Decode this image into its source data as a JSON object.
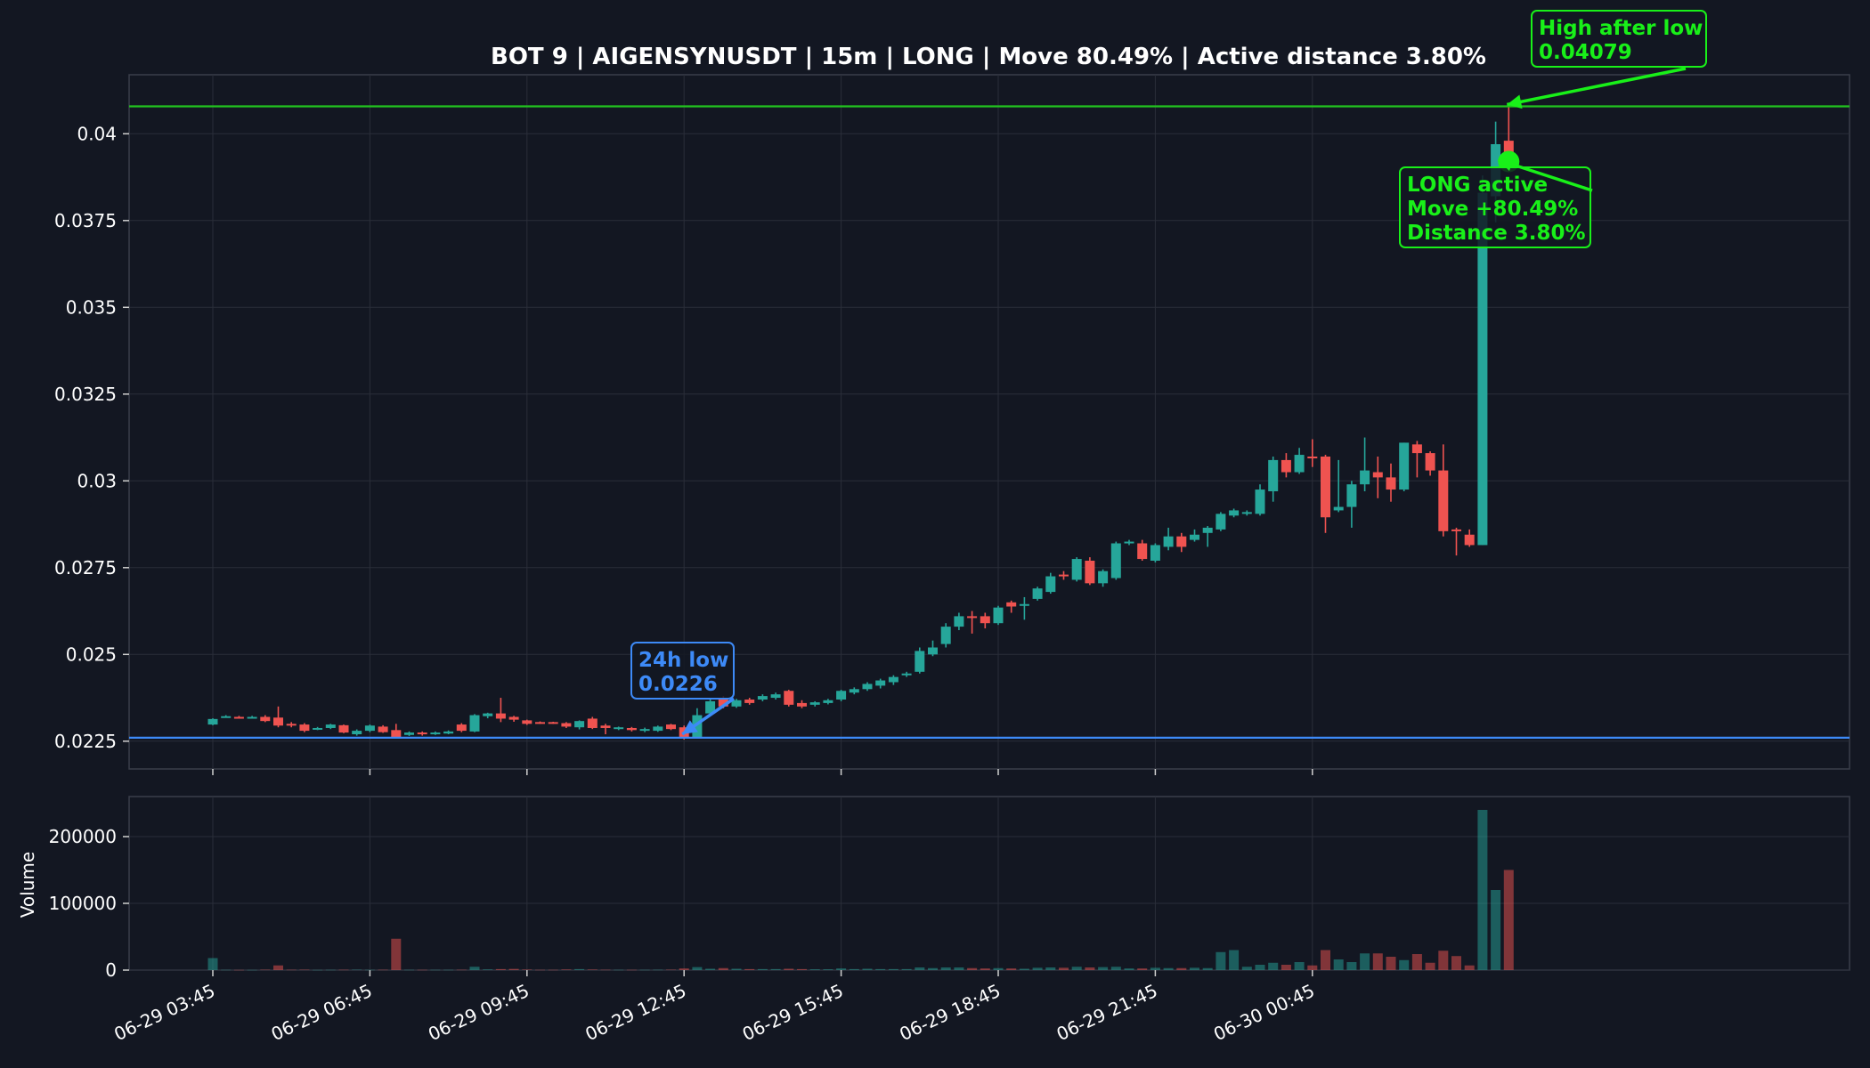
{
  "chart_data": {
    "type": "candlestick",
    "title": "BOT 9 | AIGENSYNUSDT | 15m | LONG | Move 80.49% | Active distance 3.80%",
    "interval": "15m",
    "start_time": "06-29 03:45",
    "ylim": [
      0.0217,
      0.0417
    ],
    "y_ticks": [
      "0.0225",
      "0.025",
      "0.0275",
      "0.03",
      "0.0325",
      "0.035",
      "0.0375",
      "0.04"
    ],
    "volume_ylabel": "Volume",
    "volume_ylim": [
      0,
      260000
    ],
    "volume_ticks": [
      "0",
      "100000",
      "200000"
    ],
    "x_ticks": [
      "06-29 03:45",
      "06-29 06:45",
      "06-29 09:45",
      "06-29 12:45",
      "06-29 15:45",
      "06-29 18:45",
      "06-29 21:45",
      "06-30 00:45"
    ],
    "colors": {
      "background": "#131722",
      "up": "#26a69a",
      "down": "#ef5350",
      "high_line": "#22c21f",
      "low_line": "#3d8af7",
      "marker": "#19f019",
      "grid": "#2a2e39",
      "label_text": "#ffffff"
    },
    "candles": [
      [
        0.02298,
        0.02314,
        0.02296,
        0.02316,
        18000
      ],
      [
        0.0232,
        0.02322,
        0.02318,
        0.02325,
        400
      ],
      [
        0.0232,
        0.02318,
        0.02315,
        0.02323,
        300
      ],
      [
        0.02318,
        0.0232,
        0.02316,
        0.02323,
        300
      ],
      [
        0.0232,
        0.02308,
        0.02305,
        0.02325,
        600
      ],
      [
        0.02318,
        0.02295,
        0.0229,
        0.0235,
        7000
      ],
      [
        0.023,
        0.02295,
        0.0229,
        0.02305,
        500
      ],
      [
        0.02298,
        0.0228,
        0.02276,
        0.02302,
        600
      ],
      [
        0.02285,
        0.02288,
        0.02282,
        0.02291,
        300
      ],
      [
        0.02288,
        0.02298,
        0.02285,
        0.023,
        400
      ],
      [
        0.02296,
        0.02275,
        0.02273,
        0.02298,
        500
      ],
      [
        0.0227,
        0.0228,
        0.02266,
        0.02284,
        600
      ],
      [
        0.0228,
        0.02295,
        0.02276,
        0.02298,
        400
      ],
      [
        0.02292,
        0.02276,
        0.02274,
        0.02296,
        500
      ],
      [
        0.02282,
        0.02262,
        0.0226,
        0.023,
        47000
      ],
      [
        0.02268,
        0.02275,
        0.02265,
        0.02278,
        400
      ],
      [
        0.02275,
        0.0227,
        0.02266,
        0.02278,
        400
      ],
      [
        0.0227,
        0.02275,
        0.02268,
        0.02278,
        400
      ],
      [
        0.02272,
        0.02278,
        0.0227,
        0.02281,
        400
      ],
      [
        0.02298,
        0.0228,
        0.02276,
        0.02302,
        500
      ],
      [
        0.02278,
        0.02325,
        0.02276,
        0.02328,
        5000
      ],
      [
        0.02322,
        0.0233,
        0.02316,
        0.02332,
        1000
      ],
      [
        0.0233,
        0.02315,
        0.02305,
        0.02375,
        1500
      ],
      [
        0.0232,
        0.02312,
        0.02306,
        0.02323,
        1800
      ],
      [
        0.0231,
        0.023,
        0.02297,
        0.02312,
        800
      ],
      [
        0.02305,
        0.02302,
        0.023,
        0.02307,
        400
      ],
      [
        0.02305,
        0.02303,
        0.023,
        0.02306,
        400
      ],
      [
        0.02302,
        0.02292,
        0.02288,
        0.02305,
        900
      ],
      [
        0.0229,
        0.02308,
        0.02284,
        0.0231,
        1500
      ],
      [
        0.02315,
        0.02288,
        0.02285,
        0.0232,
        800
      ],
      [
        0.02295,
        0.02288,
        0.0227,
        0.023,
        500
      ],
      [
        0.02285,
        0.0229,
        0.02282,
        0.02292,
        400
      ],
      [
        0.02288,
        0.02282,
        0.02278,
        0.02291,
        400
      ],
      [
        0.0228,
        0.02285,
        0.02276,
        0.02289,
        400
      ],
      [
        0.0228,
        0.02292,
        0.02277,
        0.02295,
        500
      ],
      [
        0.02298,
        0.02285,
        0.02282,
        0.023,
        600
      ],
      [
        0.0229,
        0.0226,
        0.02255,
        0.02295,
        2500
      ],
      [
        0.02262,
        0.02325,
        0.02258,
        0.02345,
        4500
      ],
      [
        0.0233,
        0.02365,
        0.02325,
        0.0237,
        2000
      ],
      [
        0.02373,
        0.0235,
        0.02345,
        0.0238,
        3000
      ],
      [
        0.0235,
        0.02368,
        0.02346,
        0.02372,
        2000
      ],
      [
        0.0237,
        0.0236,
        0.02355,
        0.02375,
        1500
      ],
      [
        0.0237,
        0.0238,
        0.02365,
        0.02385,
        1500
      ],
      [
        0.02375,
        0.02385,
        0.0237,
        0.0239,
        1500
      ],
      [
        0.02395,
        0.02355,
        0.0235,
        0.02398,
        2000
      ],
      [
        0.0236,
        0.0235,
        0.02345,
        0.02368,
        1500
      ],
      [
        0.02355,
        0.02362,
        0.0235,
        0.02365,
        1200
      ],
      [
        0.0236,
        0.02368,
        0.02356,
        0.02372,
        1200
      ],
      [
        0.0237,
        0.02395,
        0.02365,
        0.02398,
        2500
      ],
      [
        0.0239,
        0.024,
        0.02385,
        0.02405,
        1500
      ],
      [
        0.024,
        0.02415,
        0.02395,
        0.0242,
        2000
      ],
      [
        0.0241,
        0.02425,
        0.02402,
        0.0243,
        1500
      ],
      [
        0.0242,
        0.02435,
        0.02412,
        0.0244,
        1500
      ],
      [
        0.0244,
        0.02445,
        0.02435,
        0.0245,
        1500
      ],
      [
        0.0245,
        0.0251,
        0.02445,
        0.0252,
        4000
      ],
      [
        0.025,
        0.0252,
        0.02495,
        0.0254,
        3000
      ],
      [
        0.0253,
        0.0258,
        0.0252,
        0.0259,
        4000
      ],
      [
        0.0258,
        0.0261,
        0.0257,
        0.0262,
        4000
      ],
      [
        0.0261,
        0.02605,
        0.0256,
        0.02625,
        3000
      ],
      [
        0.0261,
        0.0259,
        0.02575,
        0.0262,
        2500
      ],
      [
        0.0259,
        0.02635,
        0.02585,
        0.0264,
        3000
      ],
      [
        0.0265,
        0.02638,
        0.0262,
        0.02655,
        2500
      ],
      [
        0.02645,
        0.02645,
        0.026,
        0.02665,
        2000
      ],
      [
        0.0266,
        0.0269,
        0.02655,
        0.02695,
        3500
      ],
      [
        0.0268,
        0.02725,
        0.02675,
        0.02735,
        4000
      ],
      [
        0.0273,
        0.02725,
        0.02715,
        0.0274,
        3500
      ],
      [
        0.02715,
        0.02775,
        0.0271,
        0.0278,
        5000
      ],
      [
        0.0277,
        0.02705,
        0.027,
        0.0278,
        4000
      ],
      [
        0.02705,
        0.0274,
        0.02695,
        0.02745,
        4500
      ],
      [
        0.0272,
        0.0282,
        0.02715,
        0.02825,
        5000
      ],
      [
        0.0282,
        0.02825,
        0.02815,
        0.0283,
        2500
      ],
      [
        0.0282,
        0.02775,
        0.0277,
        0.0283,
        2500
      ],
      [
        0.0277,
        0.02815,
        0.02765,
        0.0282,
        3500
      ],
      [
        0.0281,
        0.0284,
        0.028,
        0.02865,
        3000
      ],
      [
        0.0284,
        0.0281,
        0.02795,
        0.0285,
        3000
      ],
      [
        0.0283,
        0.02845,
        0.02825,
        0.0286,
        3500
      ],
      [
        0.0285,
        0.02865,
        0.0281,
        0.0287,
        3000
      ],
      [
        0.0286,
        0.02905,
        0.02855,
        0.0291,
        27000
      ],
      [
        0.029,
        0.02915,
        0.02895,
        0.0292,
        30000
      ],
      [
        0.02905,
        0.0291,
        0.029,
        0.02915,
        5000
      ],
      [
        0.02905,
        0.02975,
        0.029,
        0.0299,
        8000
      ],
      [
        0.0297,
        0.0306,
        0.0294,
        0.0307,
        11000
      ],
      [
        0.0306,
        0.03025,
        0.0301,
        0.0308,
        8000
      ],
      [
        0.03025,
        0.03075,
        0.0302,
        0.03095,
        12000
      ],
      [
        0.0307,
        0.03065,
        0.0304,
        0.0312,
        7000
      ],
      [
        0.0307,
        0.02895,
        0.0285,
        0.03075,
        30000
      ],
      [
        0.02915,
        0.02925,
        0.0291,
        0.0306,
        16000
      ],
      [
        0.02925,
        0.0299,
        0.02865,
        0.03,
        12000
      ],
      [
        0.0299,
        0.0303,
        0.0297,
        0.03125,
        25000
      ],
      [
        0.03025,
        0.0301,
        0.0295,
        0.0307,
        25000
      ],
      [
        0.0301,
        0.02975,
        0.0294,
        0.0305,
        20000
      ],
      [
        0.02975,
        0.0311,
        0.0297,
        0.0311,
        15000
      ],
      [
        0.03105,
        0.0308,
        0.0301,
        0.03115,
        24000
      ],
      [
        0.0308,
        0.0303,
        0.03015,
        0.03085,
        11000
      ],
      [
        0.0303,
        0.02855,
        0.0284,
        0.03105,
        29000
      ],
      [
        0.0286,
        0.02855,
        0.02785,
        0.02865,
        21000
      ],
      [
        0.02845,
        0.02815,
        0.0281,
        0.0286,
        7000
      ],
      [
        0.02815,
        0.0383,
        0.02815,
        0.0388,
        240000
      ],
      [
        0.0382,
        0.0397,
        0.03745,
        0.04035,
        120000
      ],
      [
        0.0398,
        0.0392,
        0.039,
        0.04079,
        150000
      ]
    ],
    "high_line": 0.04079,
    "low_line": 0.0226,
    "marker_value": 0.0392,
    "annotations": [
      {
        "lines": [
          "24h low",
          "0.0226"
        ],
        "color": "#3d8af7"
      },
      {
        "lines": [
          "High after low",
          "0.04079"
        ],
        "color": "#19f019"
      },
      {
        "lines": [
          "LONG active",
          "Move +80.49%",
          "Distance 3.80%"
        ],
        "color": "#19f019"
      }
    ]
  }
}
